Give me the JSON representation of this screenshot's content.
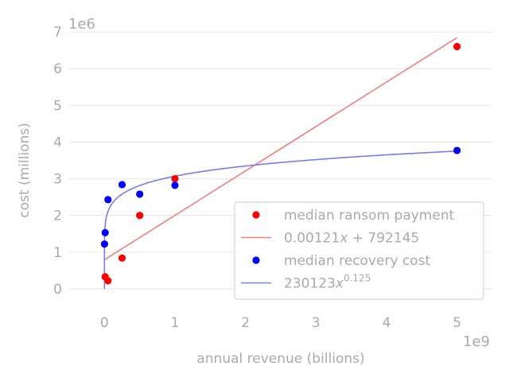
{
  "chart_data": {
    "type": "scatter",
    "xlabel": "annual revenue (billions)",
    "ylabel": "cost (millions)",
    "x_offset_label": "1e9",
    "y_offset_label": "1e6",
    "xlim": [
      -500000000,
      5500000000
    ],
    "ylim": [
      -500000,
      7500000
    ],
    "x_ticks": [
      0,
      1000000000,
      2000000000,
      3000000000,
      4000000000,
      5000000000
    ],
    "x_tick_labels": [
      "0",
      "1",
      "2",
      "3",
      "4",
      "5"
    ],
    "y_ticks": [
      0,
      1000000,
      2000000,
      3000000,
      4000000,
      5000000,
      6000000,
      7000000
    ],
    "y_tick_labels": [
      "0",
      "1",
      "2",
      "3",
      "4",
      "5",
      "6",
      "7"
    ],
    "grid": "horizontal",
    "legend_position": "lower-right",
    "series": [
      {
        "name": "median ransom payment",
        "kind": "scatter",
        "color": "#ff0000",
        "x": [
          10000000,
          50000000,
          250000000,
          500000000,
          1000000000,
          5000000000
        ],
        "y": [
          330000,
          220000,
          840000,
          2000000,
          3000000,
          6600000
        ]
      },
      {
        "name": "0.00121x + 792145",
        "kind": "fit-line",
        "color": "#f08080",
        "slope": 0.00121,
        "intercept": 792145,
        "x_range": [
          0,
          5000000000
        ]
      },
      {
        "name": "median recovery cost",
        "kind": "scatter",
        "color": "#0000ff",
        "x": [
          1000000,
          10000000,
          50000000,
          250000000,
          500000000,
          1000000000,
          5000000000
        ],
        "y": [
          1220000,
          1530000,
          2430000,
          2840000,
          2580000,
          2820000,
          3770000
        ]
      },
      {
        "name": "230123x^0.125",
        "kind": "fit-curve",
        "color": "#7b7bef",
        "coefficient": 230123,
        "exponent": 0.125,
        "x_range": [
          0,
          5000000000
        ]
      }
    ],
    "legend": {
      "entries": [
        {
          "series": 0,
          "text": "median ransom payment",
          "marker": "dot"
        },
        {
          "series": 1,
          "text_base": "0.00121",
          "text_var": "x",
          "text_rest": " + 792145",
          "marker": "line"
        },
        {
          "series": 2,
          "text": "median recovery cost",
          "marker": "dot"
        },
        {
          "series": 3,
          "text_base": "230123",
          "text_var": "x",
          "text_sup": "0.125",
          "marker": "line"
        }
      ]
    }
  }
}
